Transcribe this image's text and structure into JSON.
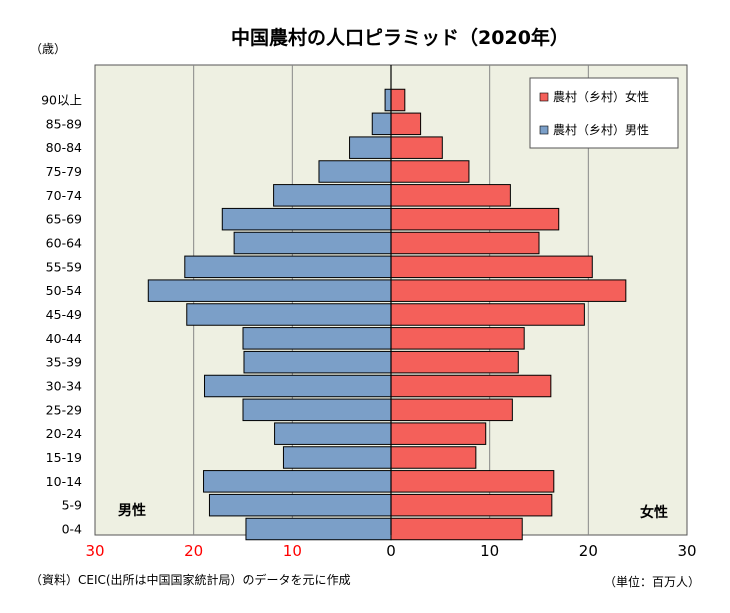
{
  "chart_data": {
    "type": "bar",
    "orientation": "horizontal",
    "title": "中国農村の人口ピラミッド（2020年）",
    "unit_label": "（歳）",
    "categories": [
      "90以上",
      "85-89",
      "80-84",
      "75-79",
      "70-74",
      "65-69",
      "60-64",
      "55-59",
      "50-54",
      "45-49",
      "40-44",
      "35-39",
      "30-34",
      "25-29",
      "20-24",
      "15-19",
      "10-14",
      "5-9",
      "0-4"
    ],
    "series": [
      {
        "name": "農村（乡村）女性",
        "color": "#f4605a",
        "values": [
          1.4,
          3.0,
          5.2,
          7.9,
          12.1,
          17.0,
          15.0,
          20.4,
          23.8,
          19.6,
          13.5,
          12.9,
          16.2,
          12.3,
          9.6,
          8.6,
          16.5,
          16.3,
          13.3
        ]
      },
      {
        "name": "農村（乡村）男性",
        "color": "#7b9fc8",
        "values": [
          0.6,
          1.9,
          4.2,
          7.3,
          11.9,
          17.1,
          15.9,
          20.9,
          24.6,
          20.7,
          15.0,
          14.9,
          18.9,
          15.0,
          11.8,
          10.9,
          19.0,
          18.4,
          14.7
        ]
      }
    ],
    "xlim": [
      -30,
      30
    ],
    "x_ticks": [
      {
        "value": -30,
        "label": "30"
      },
      {
        "value": -20,
        "label": "20"
      },
      {
        "value": -10,
        "label": "10"
      },
      {
        "value": 0,
        "label": "0"
      },
      {
        "value": 10,
        "label": "10"
      },
      {
        "value": 20,
        "label": "20"
      },
      {
        "value": 30,
        "label": "30"
      }
    ],
    "left_label": "男性",
    "right_label": "女性",
    "source_note": "（資料）CEIC(出所は中国国家統計局）のデータを元に作成",
    "unit_note": "（単位：百万人）",
    "legend_position": "top-right",
    "grid": true,
    "colors": {
      "plot_background": "#eef0e2",
      "grid": "#888888",
      "left_tick_labels": "#ff0000",
      "right_tick_labels": "#000000"
    }
  }
}
